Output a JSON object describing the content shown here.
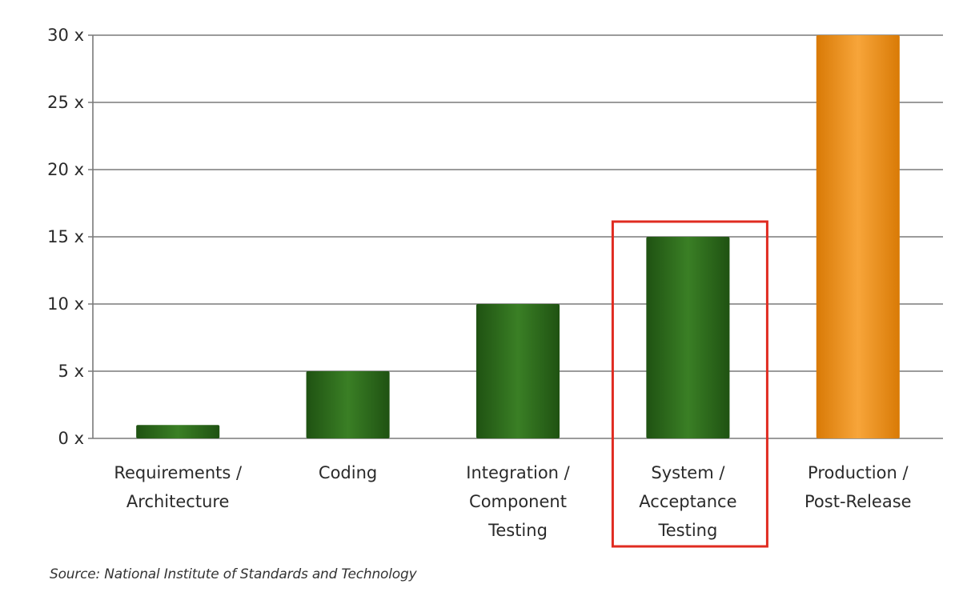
{
  "chart_data": {
    "type": "bar",
    "categories": [
      "Requirements / Architecture",
      "Coding",
      "Integration / Component Testing",
      "System / Acceptance Testing",
      "Production / Post-Release"
    ],
    "category_label_lines": [
      [
        "Requirements /",
        "Architecture"
      ],
      [
        "Coding"
      ],
      [
        "Integration /",
        "Component",
        "Testing"
      ],
      [
        "System /",
        "Acceptance",
        "Testing"
      ],
      [
        "Production /",
        "Post-Release"
      ]
    ],
    "values": [
      1,
      5,
      10,
      15,
      30
    ],
    "ylim": [
      0,
      30
    ],
    "y_ticks": [
      0,
      5,
      10,
      15,
      20,
      25,
      30
    ],
    "y_tick_suffix": " x",
    "grid": true,
    "bar_colors": [
      "#2d6b1c",
      "#2d6b1c",
      "#2d6b1c",
      "#2d6b1c",
      "#f0900e"
    ],
    "highlight_index": 3,
    "highlight_color": "#e02b20"
  },
  "source_note": "Source: National Institute of Standards and Technology"
}
